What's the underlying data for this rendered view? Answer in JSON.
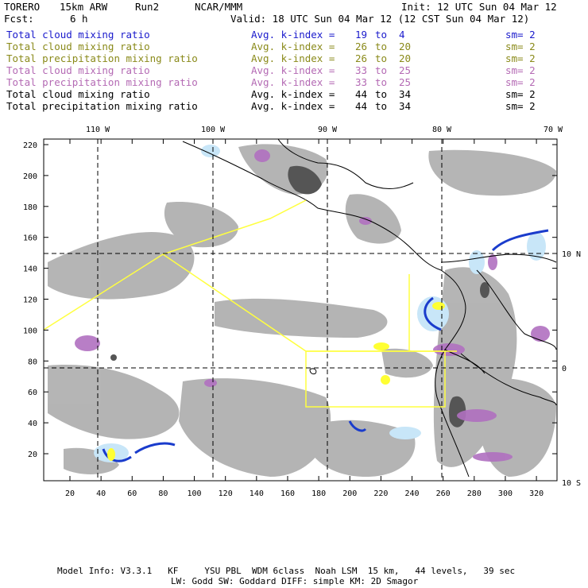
{
  "header": {
    "model": "TORERO",
    "resolution": "15km ARW",
    "run": "Run2",
    "org": "NCAR/MMM",
    "init": "Init: 12 UTC Sun 04 Mar 12",
    "fcst_label": "Fcst:",
    "fcst_value": "6 h",
    "valid": "Valid: 18 UTC Sun 04 Mar 12 (12 CST Sun 04 Mar 12)"
  },
  "legend_rows": [
    {
      "field": "Total cloud mixing ratio",
      "kindex": "Avg. k-index =",
      "from": "19",
      "to_word": "to",
      "to": "4",
      "sm": "sm= 2",
      "color": "#1a1acc"
    },
    {
      "field": "Total cloud mixing ratio",
      "kindex": "Avg. k-index =",
      "from": "26",
      "to_word": "to",
      "to": "20",
      "sm": "sm= 2",
      "color": "#8a8a1a"
    },
    {
      "field": "Total precipitation mixing ratio",
      "kindex": "Avg. k-index =",
      "from": "26",
      "to_word": "to",
      "to": "20",
      "sm": "sm= 2",
      "color": "#8a8a1a"
    },
    {
      "field": "Total cloud mixing ratio",
      "kindex": "Avg. k-index =",
      "from": "33",
      "to_word": "to",
      "to": "25",
      "sm": "sm= 2",
      "color": "#b46ab4"
    },
    {
      "field": "Total precipitation mixing ratio",
      "kindex": "Avg. k-index =",
      "from": "33",
      "to_word": "to",
      "to": "25",
      "sm": "sm= 2",
      "color": "#b46ab4"
    },
    {
      "field": "Total cloud mixing ratio",
      "kindex": "Avg. k-index =",
      "from": "44",
      "to_word": "to",
      "to": "34",
      "sm": "sm= 2",
      "color": "#000000"
    },
    {
      "field": "Total precipitation mixing ratio",
      "kindex": "Avg. k-index =",
      "from": "44",
      "to_word": "to",
      "to": "34",
      "sm": "sm= 2",
      "color": "#000000"
    }
  ],
  "axes": {
    "lon_labels": [
      "110 W",
      "100 W",
      "90 W",
      "80 W",
      "70 W"
    ],
    "lat_labels": [
      "10 N",
      "0",
      "10 S"
    ],
    "y_ticks": [
      "220",
      "200",
      "180",
      "160",
      "140",
      "120",
      "100",
      "80",
      "60",
      "40",
      "20"
    ],
    "x_ticks": [
      "20",
      "40",
      "60",
      "80",
      "100",
      "120",
      "140",
      "160",
      "180",
      "200",
      "220",
      "240",
      "260",
      "280",
      "300",
      "320"
    ]
  },
  "footer": {
    "line1": "Model Info: V3.3.1   KF     YSU PBL  WDM 6class  Noah LSM  15 km,   44 levels,   39 sec",
    "line2": "LW: Godd SW: Goddard DIFF: simple KM: 2D Smagor"
  },
  "colors": {
    "cloud_gray": "#a8a8a8",
    "cloud_dark": "#555555",
    "purple": "#b070c0",
    "light_blue": "#c8e6f8",
    "blue": "#1a3ccc",
    "yellow": "#ffff33",
    "domain_lines": "#ffff40"
  }
}
